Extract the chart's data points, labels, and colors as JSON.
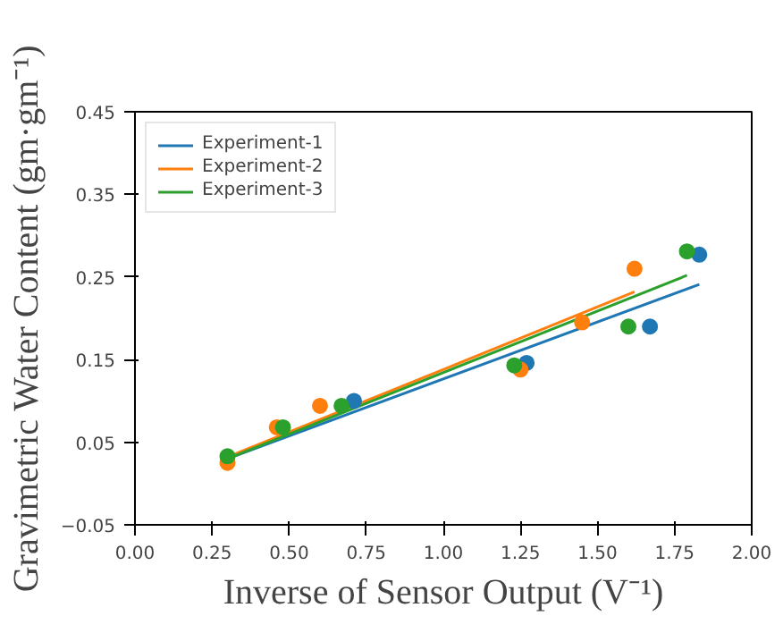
{
  "chart_data": {
    "type": "scatter",
    "xlabel": "Inverse of Sensor Output (V⁻¹)",
    "ylabel": "Gravimetric Water Content (gm·gm⁻¹)",
    "xlim": [
      0.0,
      2.0
    ],
    "xticks": [
      {
        "value": 0,
        "label": "0.00"
      },
      0.25,
      {
        "value": 0.5,
        "label": "0.50"
      },
      0.75,
      {
        "value": 1,
        "label": "1.00"
      },
      1.25,
      {
        "value": 1.5,
        "label": "1.50"
      },
      1.75,
      {
        "value": 2,
        "label": "2.00"
      }
    ],
    "ylim": [
      -0.05,
      0.45
    ],
    "yticks": [
      {
        "value": -0.05,
        "label": "−0.05"
      },
      0.05,
      0.15,
      0.25,
      0.35,
      0.45
    ],
    "legend": "top left",
    "grid": false,
    "series": [
      {
        "type": "line",
        "name": "Experiment-1",
        "color": "#1f77b4",
        "x": [
          0.3,
          1.83
        ],
        "values": [
          0.03,
          0.241
        ]
      },
      {
        "type": "line",
        "name": "Experiment-2",
        "color": "#ff7f0e",
        "x": [
          0.3,
          1.62
        ],
        "values": [
          0.032,
          0.232
        ]
      },
      {
        "type": "line",
        "name": "Experiment-3",
        "color": "#2ca02c",
        "x": [
          0.3,
          1.79
        ],
        "values": [
          0.03,
          0.252
        ]
      },
      {
        "color": "#1f77b4",
        "marker": "circle",
        "x": [
          0.71,
          1.27,
          1.67,
          1.83
        ],
        "values": [
          0.1,
          0.146,
          0.19,
          0.277
        ]
      },
      {
        "color": "#ff7f0e",
        "marker": "circle",
        "x": [
          0.3,
          0.46,
          0.6,
          1.25,
          1.45,
          1.62
        ],
        "values": [
          0.025,
          0.068,
          0.094,
          0.138,
          0.195,
          0.26
        ]
      },
      {
        "color": "#2ca02c",
        "marker": "circle",
        "x": [
          0.3,
          0.48,
          0.67,
          1.23,
          1.6,
          1.79
        ],
        "values": [
          0.033,
          0.068,
          0.094,
          0.143,
          0.19,
          0.281
        ]
      }
    ]
  }
}
